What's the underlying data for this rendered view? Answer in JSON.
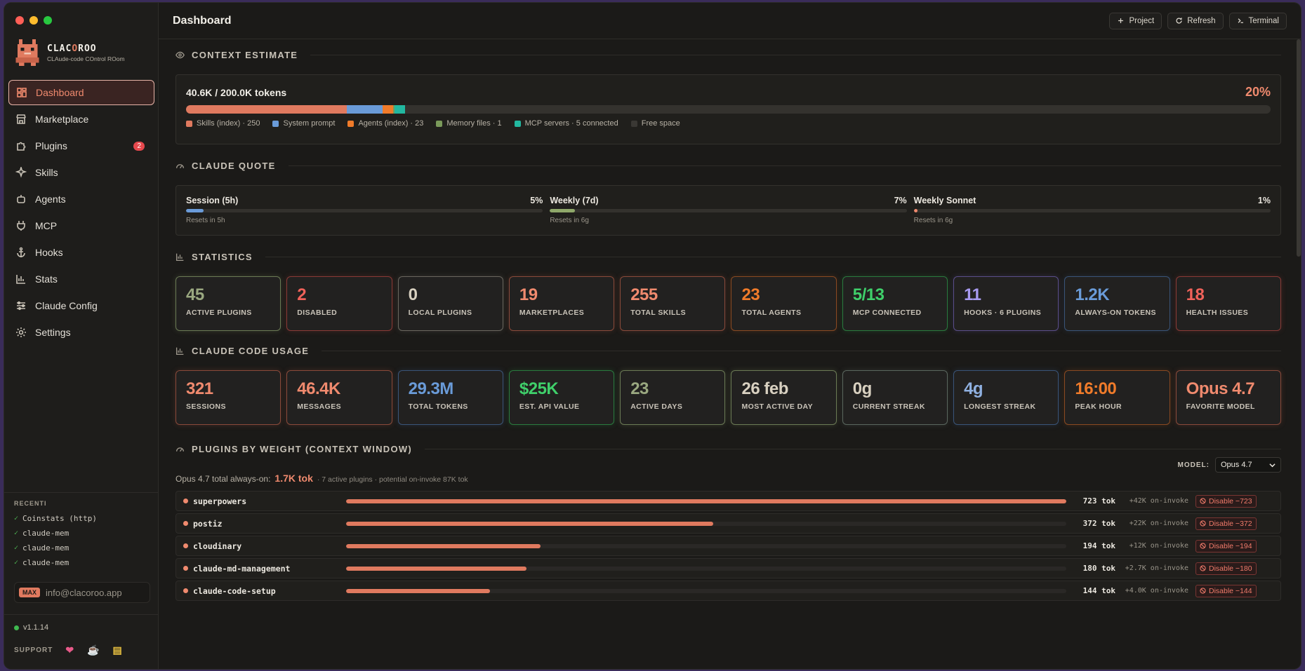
{
  "app": {
    "name_prefix": "CLAC",
    "name_o": "O",
    "name_suffix": "ROO",
    "subtitle": "CLAude-code COntrol ROom"
  },
  "sidebar": {
    "items": [
      {
        "label": "Dashboard",
        "icon": "dashboard-icon",
        "active": true
      },
      {
        "label": "Marketplace",
        "icon": "store-icon"
      },
      {
        "label": "Plugins",
        "icon": "puzzle-icon",
        "badge": "2"
      },
      {
        "label": "Skills",
        "icon": "sparkle-icon"
      },
      {
        "label": "Agents",
        "icon": "bot-icon"
      },
      {
        "label": "MCP",
        "icon": "plug-icon"
      },
      {
        "label": "Hooks",
        "icon": "anchor-icon"
      },
      {
        "label": "Stats",
        "icon": "bar-chart-icon"
      },
      {
        "label": "Claude Config",
        "icon": "sliders-icon"
      },
      {
        "label": "Settings",
        "icon": "gear-icon"
      }
    ],
    "recent_title": "RECENTI",
    "recent": [
      "Coinstats (http)",
      "claude-mem",
      "claude-mem",
      "claude-mem"
    ],
    "plan_badge": "MAX",
    "email": "info@clacoroo.app",
    "version": "v1.1.14",
    "support_label": "SUPPORT"
  },
  "header": {
    "title": "Dashboard",
    "buttons": [
      {
        "label": "Project",
        "icon": "plus-icon"
      },
      {
        "label": "Refresh",
        "icon": "refresh-icon"
      },
      {
        "label": "Terminal",
        "icon": "terminal-icon"
      }
    ]
  },
  "context": {
    "title": "CONTEXT ESTIMATE",
    "tokens": "40.6K / 200.0K tokens",
    "percent": "20%",
    "segments": [
      {
        "label": "Skills (index) · 250",
        "color": "#e07a5f",
        "fraction": 0.148
      },
      {
        "label": "System prompt",
        "color": "#6a9bd8",
        "fraction": 0.033
      },
      {
        "label": "Agents (index) · 23",
        "color": "#f07b2a",
        "fraction": 0.01
      },
      {
        "label": "Memory files · 1",
        "color": "#7a9a5a",
        "fraction": 0.001
      },
      {
        "label": "MCP servers · 5 connected",
        "color": "#22b8a0",
        "fraction": 0.01
      },
      {
        "label": "Free space",
        "color": "#3a3834",
        "fraction": 0.0
      }
    ]
  },
  "quota": {
    "title": "CLAUDE QUOTE",
    "items": [
      {
        "label": "Session (5h)",
        "percent": "5%",
        "fraction": 0.05,
        "reset": "Resets in 5h",
        "color": "#6a9bd8"
      },
      {
        "label": "Weekly (7d)",
        "percent": "7%",
        "fraction": 0.07,
        "reset": "Resets in 6g",
        "color": "#8fa86a"
      },
      {
        "label": "Weekly Sonnet",
        "percent": "1%",
        "fraction": 0.01,
        "reset": "Resets in 6g",
        "color": "#f08a6e"
      }
    ]
  },
  "statistics": {
    "title": "STATISTICS",
    "cards": [
      {
        "value": "45",
        "label": "ACTIVE PLUGINS",
        "color": "#9aa880",
        "border": "#6b7a55"
      },
      {
        "value": "2",
        "label": "DISABLED",
        "color": "#f0625a",
        "border": "#8a3a36"
      },
      {
        "value": "0",
        "label": "LOCAL PLUGINS",
        "color": "#d8d0c0",
        "border": "#6a665e"
      },
      {
        "value": "19",
        "label": "MARKETPLACES",
        "color": "#f08a6e",
        "border": "#8a4a3a"
      },
      {
        "value": "255",
        "label": "TOTAL SKILLS",
        "color": "#f08a6e",
        "border": "#8a4a3a"
      },
      {
        "value": "23",
        "label": "TOTAL AGENTS",
        "color": "#f07b2a",
        "border": "#8a4a22"
      },
      {
        "value": "5/13",
        "label": "MCP CONNECTED",
        "color": "#3fcf6a",
        "border": "#2a7a3e"
      },
      {
        "value": "11",
        "label": "HOOKS · 6 PLUGINS",
        "color": "#a89af0",
        "border": "#5a4e8a"
      },
      {
        "value": "1.2K",
        "label": "ALWAYS-ON TOKENS",
        "color": "#6a9bd8",
        "border": "#3a5478"
      },
      {
        "value": "18",
        "label": "HEALTH ISSUES",
        "color": "#f0625a",
        "border": "#8a3a36"
      }
    ]
  },
  "usage": {
    "title": "CLAUDE CODE USAGE",
    "cards": [
      {
        "value": "321",
        "label": "SESSIONS",
        "color": "#f08a6e",
        "border": "#8a4a3a"
      },
      {
        "value": "46.4K",
        "label": "MESSAGES",
        "color": "#f08a6e",
        "border": "#8a4a3a"
      },
      {
        "value": "29.3M",
        "label": "TOTAL TOKENS",
        "color": "#6a9bd8",
        "border": "#3a5478"
      },
      {
        "value": "$25K",
        "label": "EST. API VALUE",
        "color": "#3fcf6a",
        "border": "#2a7a3e"
      },
      {
        "value": "23",
        "label": "ACTIVE DAYS",
        "color": "#9aa880",
        "border": "#6b7a55"
      },
      {
        "value": "26 feb",
        "label": "MOST ACTIVE DAY",
        "color": "#d8d0c0",
        "border": "#6b7a55"
      },
      {
        "value": "0g",
        "label": "CURRENT STREAK",
        "color": "#d8d0c0",
        "border": "#5a665e"
      },
      {
        "value": "4g",
        "label": "LONGEST STREAK",
        "color": "#8fb0e0",
        "border": "#3a5478"
      },
      {
        "value": "16:00",
        "label": "PEAK HOUR",
        "color": "#f07b2a",
        "border": "#8a4a22"
      },
      {
        "value": "Opus 4.7",
        "label": "FAVORITE MODEL",
        "color": "#f08a6e",
        "border": "#8a4a3a"
      }
    ]
  },
  "plugins": {
    "title": "PLUGINS BY WEIGHT (CONTEXT WINDOW)",
    "model_label": "MODEL:",
    "model_value": "Opus 4.7",
    "always_on_prefix": "Opus 4.7 total always-on:",
    "always_on_value": "1.7K tok",
    "always_on_note": "· 7 active plugins · potential on-invoke 87K tok",
    "rows": [
      {
        "name": "superpowers",
        "tokens": "723 tok",
        "fraction": 1.0,
        "invoke": "+42K on-invoke",
        "disable": "Disable −723"
      },
      {
        "name": "postiz",
        "tokens": "372 tok",
        "fraction": 0.51,
        "invoke": "+22K on-invoke",
        "disable": "Disable −372"
      },
      {
        "name": "cloudinary",
        "tokens": "194 tok",
        "fraction": 0.27,
        "invoke": "+12K on-invoke",
        "disable": "Disable −194"
      },
      {
        "name": "claude-md-management",
        "tokens": "180 tok",
        "fraction": 0.25,
        "invoke": "+2.7K on-invoke",
        "disable": "Disable −180"
      },
      {
        "name": "claude-code-setup",
        "tokens": "144 tok",
        "fraction": 0.2,
        "invoke": "+4.0K on-invoke",
        "disable": "Disable −144"
      }
    ]
  }
}
